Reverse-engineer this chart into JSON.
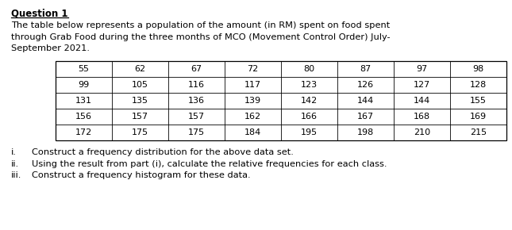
{
  "title": "Question 1",
  "paragraph_lines": [
    "The table below represents a population of the amount (in RM) spent on food spent",
    "through Grab Food during the three months of MCO (Movement Control Order) July-",
    "September 2021."
  ],
  "table_data": [
    [
      55,
      62,
      67,
      72,
      80,
      87,
      97,
      98
    ],
    [
      99,
      105,
      116,
      117,
      123,
      126,
      127,
      128
    ],
    [
      131,
      135,
      136,
      139,
      142,
      144,
      144,
      155
    ],
    [
      156,
      157,
      157,
      162,
      166,
      167,
      168,
      169
    ],
    [
      172,
      175,
      175,
      184,
      195,
      198,
      210,
      215
    ]
  ],
  "instructions": [
    [
      "i.",
      "Construct a frequency distribution for the above data set."
    ],
    [
      "ii.",
      "Using the result from part (i), calculate the relative frequencies for each class."
    ],
    [
      "iii.",
      "Construct a frequency histogram for these data."
    ]
  ],
  "font_size_title": 8.5,
  "font_size_body": 8.2,
  "font_size_table": 8.0,
  "font_size_instr": 8.2,
  "text_color": "#000000",
  "bg_color": "#ffffff",
  "table_line_color": "#000000"
}
